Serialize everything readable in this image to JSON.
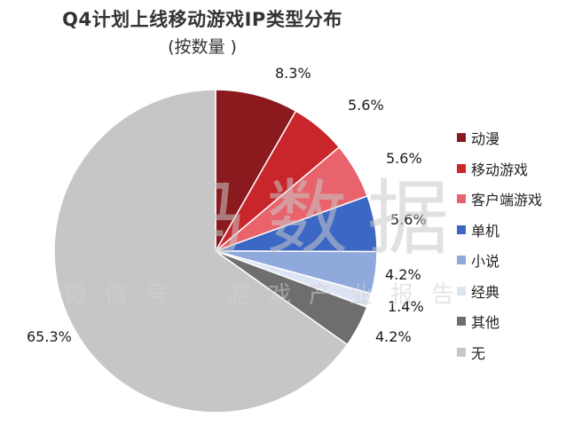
{
  "chart_data": {
    "type": "pie",
    "title": "Q4计划上线移动游戏IP类型分布",
    "subtitle": "(按数量 )",
    "legend_position": "right",
    "slices": [
      {
        "label": "动漫",
        "value": 8.3,
        "display": "8.3%",
        "color": "#8b1a1f"
      },
      {
        "label": "移动游戏",
        "value": 5.6,
        "display": "5.6%",
        "color": "#c9262c"
      },
      {
        "label": "客户端游戏",
        "value": 5.6,
        "display": "5.6%",
        "color": "#e8636b"
      },
      {
        "label": "单机",
        "value": 5.6,
        "display": "5.6%",
        "color": "#3d67c4"
      },
      {
        "label": "小说",
        "value": 4.2,
        "display": "4.2%",
        "color": "#8fa9dc"
      },
      {
        "label": "经典",
        "value": 1.4,
        "display": "1.4%",
        "color": "#dde4f3"
      },
      {
        "label": "其他",
        "value": 4.2,
        "display": "4.2%",
        "color": "#6e6e6e"
      },
      {
        "label": "无",
        "value": 65.3,
        "display": "65.3%",
        "color": "#c6c6c6"
      }
    ]
  },
  "watermark": {
    "main": "伽马数据",
    "sub": "微信号：游戏产业报告"
  }
}
